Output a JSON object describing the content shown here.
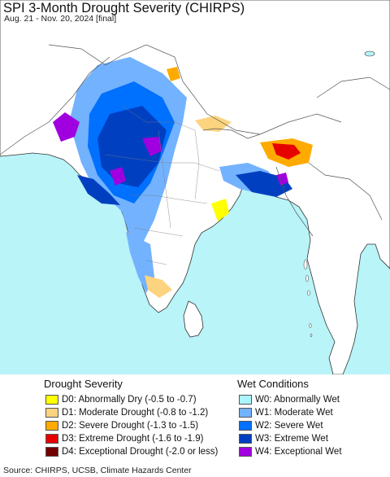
{
  "title": "SPI 3-Month Drought Severity (CHIRPS)",
  "subtitle": "Aug. 21 - Nov. 20, 2024 [final]",
  "source": "Source: CHIRPS, UCSB, Climate Hazards Center",
  "map_colors": {
    "ocean": "#b8f4f8",
    "land": "#ffffff",
    "border": "#555555",
    "coast": "#333333"
  },
  "legend": {
    "drought_heading": "Drought Severity",
    "wet_heading": "Wet Conditions",
    "drought": [
      {
        "label": "D0: Abnormally Dry (-0.5 to -0.7)",
        "color": "#ffff00"
      },
      {
        "label": "D1: Moderate Drought (-0.8 to -1.2)",
        "color": "#fcd37f"
      },
      {
        "label": "D2: Severe Drought (-1.3 to -1.5)",
        "color": "#ffaa00"
      },
      {
        "label": "D3: Extreme Drought (-1.6 to -1.9)",
        "color": "#e60000"
      },
      {
        "label": "D4: Exceptional Drought (-2.0 or less)",
        "color": "#730000"
      }
    ],
    "wet": [
      {
        "label": "W0: Abnormally Wet",
        "color": "#aaf5ff"
      },
      {
        "label": "W1: Moderate Wet",
        "color": "#73b2ff"
      },
      {
        "label": "W2: Severe Wet",
        "color": "#0070ff"
      },
      {
        "label": "W3: Extreme Wet",
        "color": "#0040c0"
      },
      {
        "label": "W4: Exceptional Wet",
        "color": "#a000e0"
      }
    ]
  }
}
